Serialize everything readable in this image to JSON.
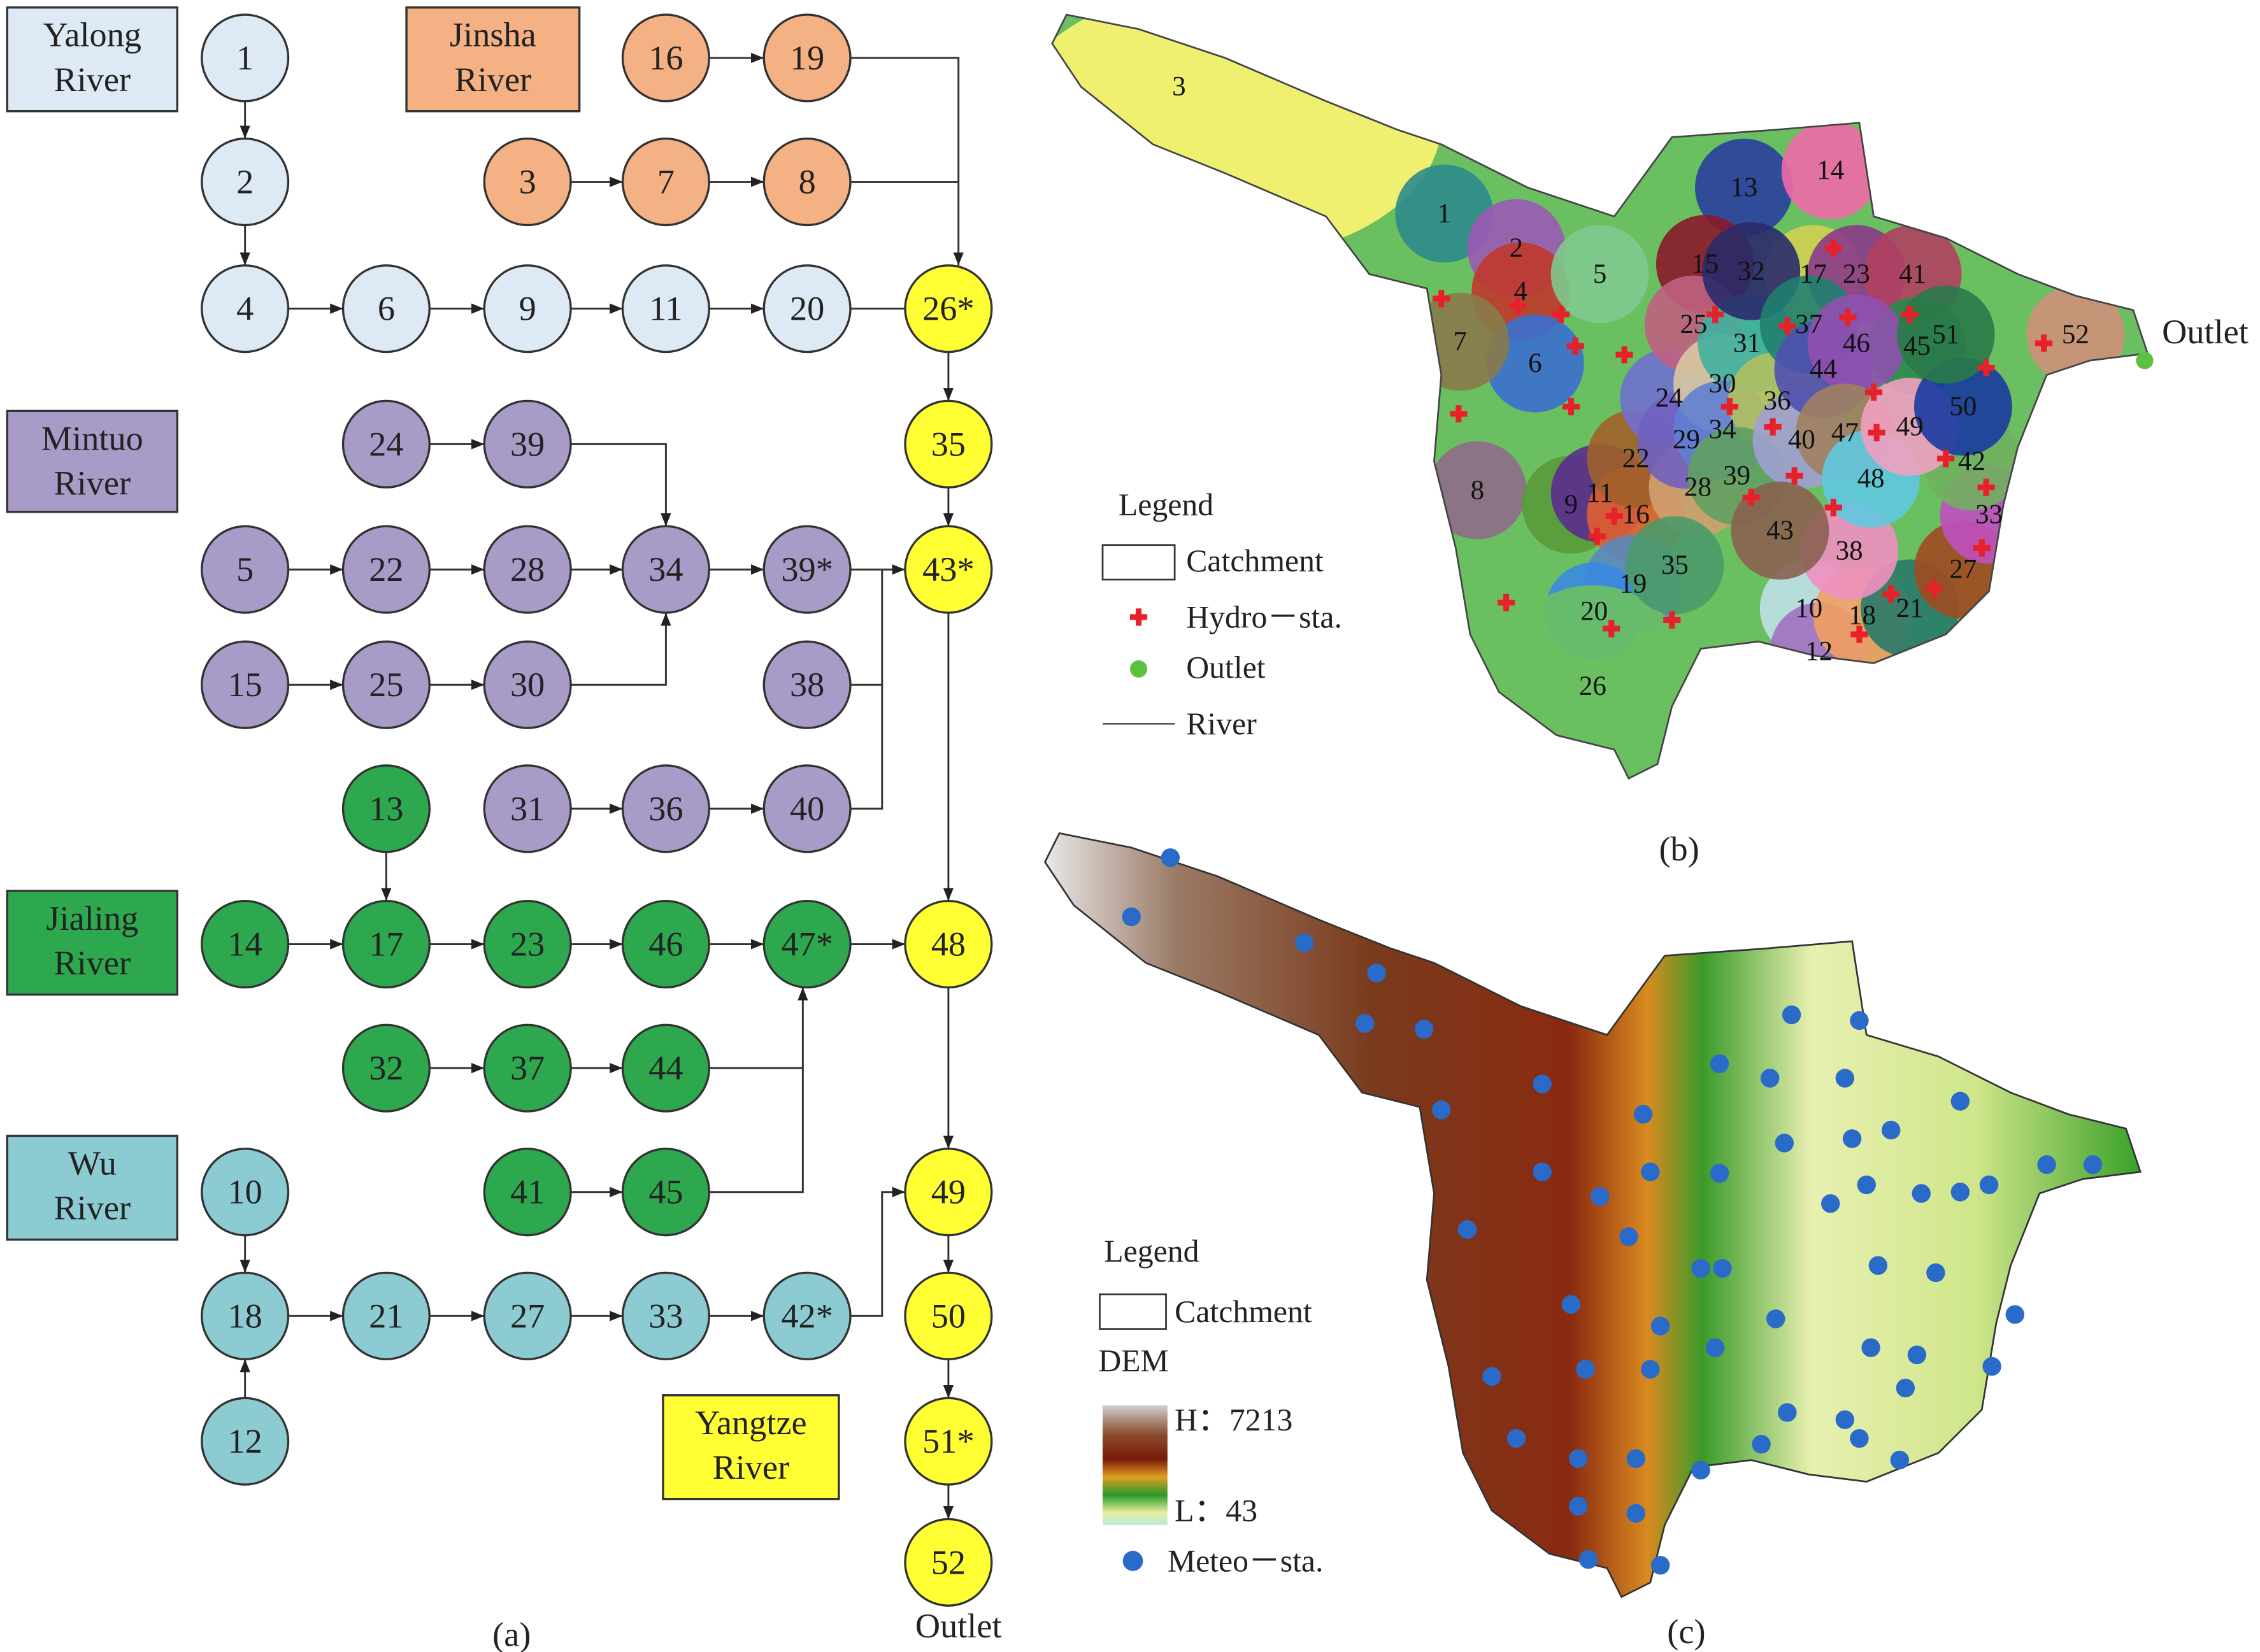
{
  "panel_a": {
    "rivers": [
      {
        "lines": [
          "Yalong",
          "River"
        ],
        "color": "#ddeaf6"
      },
      {
        "lines": [
          "Jinsha",
          "River"
        ],
        "color": "#f4b183"
      },
      {
        "lines": [
          "Mintuo",
          "River"
        ],
        "color": "#a99bc8"
      },
      {
        "lines": [
          "Jialing",
          "River"
        ],
        "color": "#2ea84f"
      },
      {
        "lines": [
          "Wu",
          "River"
        ],
        "color": "#8dcbd3"
      },
      {
        "lines": [
          "Yangtze",
          "River"
        ],
        "color": "#ffff33"
      }
    ],
    "nodes": [
      {
        "label": "1",
        "color": "#ddeaf6"
      },
      {
        "label": "2",
        "color": "#ddeaf6"
      },
      {
        "label": "4",
        "color": "#ddeaf6"
      },
      {
        "label": "6",
        "color": "#ddeaf6"
      },
      {
        "label": "9",
        "color": "#ddeaf6"
      },
      {
        "label": "11",
        "color": "#ddeaf6"
      },
      {
        "label": "20",
        "color": "#ddeaf6"
      },
      {
        "label": "16",
        "color": "#f4b183"
      },
      {
        "label": "19",
        "color": "#f4b183"
      },
      {
        "label": "3",
        "color": "#f4b183"
      },
      {
        "label": "7",
        "color": "#f4b183"
      },
      {
        "label": "8",
        "color": "#f4b183"
      },
      {
        "label": "26*",
        "color": "#ffff33"
      },
      {
        "label": "35",
        "color": "#ffff33"
      },
      {
        "label": "43*",
        "color": "#ffff33"
      },
      {
        "label": "48",
        "color": "#ffff33"
      },
      {
        "label": "49",
        "color": "#ffff33"
      },
      {
        "label": "50",
        "color": "#ffff33"
      },
      {
        "label": "51*",
        "color": "#ffff33"
      },
      {
        "label": "52",
        "color": "#ffff33"
      },
      {
        "label": "24",
        "color": "#a99bc8"
      },
      {
        "label": "39",
        "color": "#a99bc8"
      },
      {
        "label": "5",
        "color": "#a99bc8"
      },
      {
        "label": "22",
        "color": "#a99bc8"
      },
      {
        "label": "28",
        "color": "#a99bc8"
      },
      {
        "label": "34",
        "color": "#a99bc8"
      },
      {
        "label": "39*",
        "color": "#a99bc8"
      },
      {
        "label": "15",
        "color": "#a99bc8"
      },
      {
        "label": "25",
        "color": "#a99bc8"
      },
      {
        "label": "30",
        "color": "#a99bc8"
      },
      {
        "label": "38",
        "color": "#a99bc8"
      },
      {
        "label": "31",
        "color": "#a99bc8"
      },
      {
        "label": "36",
        "color": "#a99bc8"
      },
      {
        "label": "40",
        "color": "#a99bc8"
      },
      {
        "label": "13",
        "color": "#2ea84f"
      },
      {
        "label": "14",
        "color": "#2ea84f"
      },
      {
        "label": "17",
        "color": "#2ea84f"
      },
      {
        "label": "23",
        "color": "#2ea84f"
      },
      {
        "label": "46",
        "color": "#2ea84f"
      },
      {
        "label": "47*",
        "color": "#2ea84f"
      },
      {
        "label": "32",
        "color": "#2ea84f"
      },
      {
        "label": "37",
        "color": "#2ea84f"
      },
      {
        "label": "44",
        "color": "#2ea84f"
      },
      {
        "label": "41",
        "color": "#2ea84f"
      },
      {
        "label": "45",
        "color": "#2ea84f"
      },
      {
        "label": "10",
        "color": "#8dcbd3"
      },
      {
        "label": "18",
        "color": "#8dcbd3"
      },
      {
        "label": "21",
        "color": "#8dcbd3"
      },
      {
        "label": "27",
        "color": "#8dcbd3"
      },
      {
        "label": "33",
        "color": "#8dcbd3"
      },
      {
        "label": "42*",
        "color": "#8dcbd3"
      },
      {
        "label": "12",
        "color": "#8dcbd3"
      }
    ],
    "outlet": "Outlet",
    "label": "(a)"
  },
  "panel_b": {
    "catchments": [
      "1",
      "2",
      "3",
      "4",
      "5",
      "6",
      "7",
      "8",
      "9",
      "10",
      "11",
      "12",
      "13",
      "14",
      "15",
      "16",
      "17",
      "18",
      "19",
      "20",
      "21",
      "22",
      "23",
      "24",
      "25",
      "26",
      "27",
      "28",
      "29",
      "30",
      "31",
      "32",
      "33",
      "34",
      "35",
      "36",
      "37",
      "38",
      "39",
      "40",
      "41",
      "42",
      "43",
      "44",
      "45",
      "46",
      "47",
      "48",
      "49",
      "50",
      "51",
      "52"
    ],
    "outlet": "Outlet",
    "legend": {
      "title": "Legend",
      "items": [
        "Catchment",
        "Hydro－sta.",
        "Outlet",
        "River"
      ]
    },
    "label": "(b)"
  },
  "panel_c": {
    "legend": {
      "title": "Legend",
      "catchment": "Catchment",
      "dem": "DEM",
      "high": "H：7213",
      "low": "L：43",
      "meteo": "Meteo－sta."
    },
    "label": "(c)"
  }
}
